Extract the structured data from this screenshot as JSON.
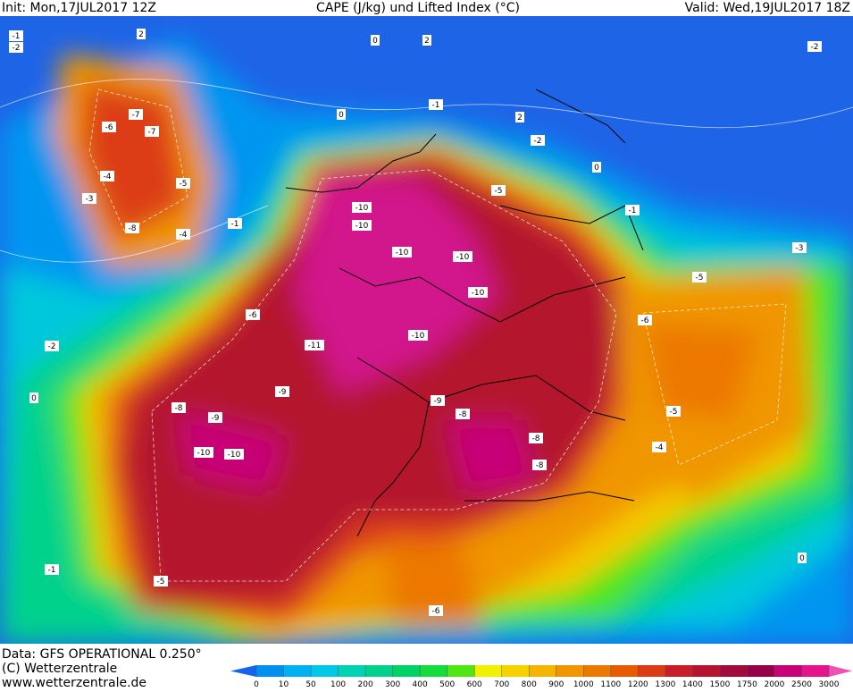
{
  "header": {
    "init": "Init: Mon,17JUL2017 12Z",
    "title": "CAPE (J/kg) und Lifted Index (°C)",
    "valid": "Valid: Wed,19JUL2017 18Z"
  },
  "footer": {
    "data": "Data: GFS OPERATIONAL 0.250°",
    "copyright": "(C) Wetterzentrale",
    "url": "www.wetterzentrale.de"
  },
  "colorbar": {
    "levels": [
      0,
      10,
      50,
      100,
      200,
      300,
      400,
      500,
      600,
      700,
      800,
      900,
      1000,
      1100,
      1200,
      1300,
      1400,
      1500,
      1750,
      2000,
      2500,
      3000
    ],
    "colors": [
      "#1464f0",
      "#0090f0",
      "#00b0f0",
      "#00c8e6",
      "#00d2b4",
      "#00d28c",
      "#00d264",
      "#14dc3c",
      "#50e614",
      "#f0f000",
      "#f5d200",
      "#f5b400",
      "#f09600",
      "#ec7800",
      "#e85a00",
      "#dc3c14",
      "#c81e28",
      "#b4142d",
      "#a00a3c",
      "#960046",
      "#c80078",
      "#e6148c",
      "#f050b4"
    ]
  },
  "lifted_index_labels": [
    -1,
    -2,
    2,
    0,
    2,
    -1,
    0,
    -7,
    -6,
    -7,
    -4,
    -5,
    -3,
    -8,
    -4,
    -1,
    -10,
    -10,
    -10,
    -10,
    -10,
    -11,
    -10,
    -9,
    -8,
    -9,
    -10,
    -10,
    -9,
    -8,
    -8,
    -8,
    -5,
    -4,
    -5,
    -6,
    -3,
    0,
    -6,
    -5,
    -1,
    -2,
    0,
    -6,
    -5,
    -2,
    -1,
    0,
    2,
    -2
  ]
}
